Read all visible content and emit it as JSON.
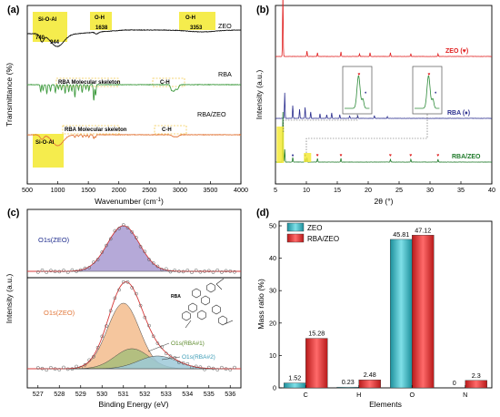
{
  "chart_data": [
    {
      "panel": "(a)",
      "type": "line",
      "xlabel": "Wavenumber (cm",
      "xlabel_sup": "-1",
      "xlabel_end": ")",
      "ylabel": "Transmittance (%)",
      "xlim": [
        500,
        4000
      ],
      "xticks": [
        500,
        1000,
        1500,
        2000,
        2500,
        3000,
        3500,
        4000
      ],
      "series": [
        {
          "name": "ZEO",
          "color": "#111111"
        },
        {
          "name": "RBA",
          "color": "#3f9b3f"
        },
        {
          "name": "RBA/ZEO",
          "color": "#e2773a"
        }
      ],
      "annotations": [
        "Si-O-Al",
        "740",
        "944",
        "O-H",
        "1638",
        "O-H",
        "3353",
        "RBA Molecular skeleton",
        "C-H",
        "Si-O-Al",
        "RBA Molecular skeleton",
        "C-H"
      ]
    },
    {
      "panel": "(b)",
      "type": "line",
      "xlabel": "2θ (°)",
      "ylabel": "Intensity (a.u.)",
      "xlim": [
        5,
        40
      ],
      "xticks": [
        5,
        10,
        15,
        20,
        25,
        30,
        35,
        40
      ],
      "series": [
        {
          "name": "ZEO",
          "marker": "♥",
          "color": "#e02020"
        },
        {
          "name": "RBA",
          "marker": "♦",
          "color": "#2c2f8f"
        },
        {
          "name": "RBA/ZEO",
          "color": "#1f7a2a"
        }
      ],
      "zeo_peaks": [
        6.2,
        10.1,
        11.8,
        15.6,
        18.6,
        20.3,
        23.6,
        26.9,
        31.3
      ],
      "rba_peaks": [
        6.5,
        7.8,
        8.9,
        9.8,
        10.7,
        12.2,
        13.3,
        14.1,
        15.4,
        17.0,
        18.3,
        21.0,
        23.1
      ],
      "labels": [
        "ZEO (♥)",
        "RBA (♦)",
        "RBA/ZEO"
      ]
    },
    {
      "panel": "(c)",
      "type": "line",
      "xlabel": "Binding Energy (eV)",
      "ylabel": "Intensity (a.u.)",
      "xlim": [
        526.5,
        536.5
      ],
      "xticks": [
        527,
        528,
        529,
        530,
        531,
        532,
        533,
        534,
        535,
        536
      ],
      "components": [
        {
          "name": "O1s(ZEO)",
          "center": 531.0,
          "fill": "#a89ad1"
        },
        {
          "name": "O1s(ZEO)",
          "center": 531.0,
          "fill": "#f3bc8d"
        },
        {
          "name": "O1s(RBA#1)",
          "center": 531.4,
          "fill": "#a7bd7a"
        },
        {
          "name": "O1s(RBA#2)",
          "center": 532.6,
          "fill": "#9ec9d8"
        }
      ],
      "inset_label": "RBA"
    },
    {
      "panel": "(d)",
      "type": "bar",
      "xlabel": "Elements",
      "ylabel": "Mass ratio (%)",
      "ylim": [
        0,
        50
      ],
      "yticks": [
        0,
        10,
        20,
        30,
        40,
        50
      ],
      "categories": [
        "C",
        "H",
        "O",
        "N"
      ],
      "series": [
        {
          "name": "ZEO",
          "values": [
            1.52,
            0.23,
            45.81,
            0
          ],
          "value_labels": [
            "1.52",
            "0.23",
            "45.81",
            "0"
          ],
          "color": "#35b7c4"
        },
        {
          "name": "RBA/ZEO",
          "values": [
            15.28,
            2.48,
            47.12,
            2.3
          ],
          "value_labels": [
            "15.28",
            "2.48",
            "47.12",
            "2.3"
          ],
          "color": "#e23a3a"
        }
      ],
      "legend_position": "top-left"
    }
  ]
}
